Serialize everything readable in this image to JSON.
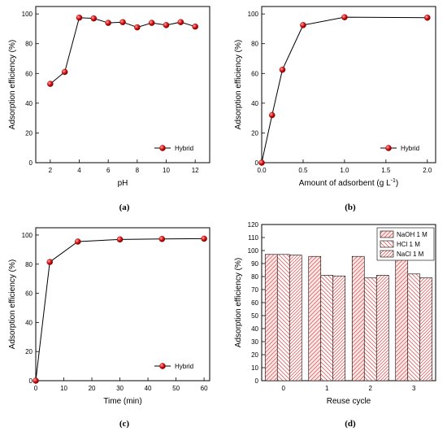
{
  "chart_data": [
    {
      "type": "line",
      "panel_label": "(a)",
      "xlabel": "pH",
      "ylabel": "Adsorption efficiency (%)",
      "xlim": [
        1,
        13
      ],
      "ylim": [
        0,
        105
      ],
      "xticks": [
        2,
        4,
        6,
        8,
        10,
        12
      ],
      "yticks": [
        0,
        20,
        40,
        60,
        80,
        100
      ],
      "legend_position": "bottom-right",
      "series": [
        {
          "name": "Hybrid",
          "x": [
            2,
            3,
            4,
            5,
            6,
            7,
            8,
            9,
            10,
            11,
            12
          ],
          "y": [
            53,
            61,
            97.5,
            97,
            94,
            94.5,
            91,
            94,
            92.5,
            94.5,
            91.5
          ]
        }
      ]
    },
    {
      "type": "line",
      "panel_label": "(b)",
      "xlabel": "Amount of adsorbent (g L",
      "xlabel_sup": "-1",
      "xlabel_end": ")",
      "ylabel": "Adsorption efficiency (%)",
      "xlim": [
        0,
        2.1
      ],
      "ylim": [
        0,
        105
      ],
      "xticks": [
        "0.0",
        "0.5",
        "1.0",
        "1.5",
        "2.0"
      ],
      "yticks": [
        0,
        20,
        40,
        60,
        80,
        100
      ],
      "legend_position": "bottom-right",
      "series": [
        {
          "name": "Hybrid",
          "x": [
            0,
            0.125,
            0.25,
            0.5,
            1.0,
            2.0
          ],
          "y": [
            0,
            32,
            62.5,
            92.5,
            97.8,
            97.5
          ]
        }
      ]
    },
    {
      "type": "line",
      "panel_label": "(c)",
      "xlabel": "Time (min)",
      "ylabel": "Adsorption efficiency (%)",
      "xlim": [
        0,
        62
      ],
      "ylim": [
        0,
        105
      ],
      "xticks": [
        0,
        10,
        20,
        30,
        40,
        50,
        60
      ],
      "yticks": [
        0,
        20,
        40,
        60,
        80,
        100
      ],
      "legend_position": "bottom-right",
      "series": [
        {
          "name": "Hybrid",
          "x": [
            0,
            5,
            15,
            30,
            45,
            60
          ],
          "y": [
            0,
            81.5,
            95.5,
            97,
            97.3,
            97.5
          ]
        }
      ]
    },
    {
      "type": "bar",
      "panel_label": "(d)",
      "xlabel": "Reuse cycle",
      "ylabel": "Adsorption efficiency (%)",
      "categories": [
        "0",
        "1",
        "2",
        "3"
      ],
      "ylim": [
        0,
        120
      ],
      "yticks": [
        0,
        10,
        20,
        30,
        40,
        50,
        60,
        70,
        80,
        90,
        100,
        110,
        120
      ],
      "legend_position": "top-right",
      "series": [
        {
          "name": "NaOH 1 M",
          "values": [
            97,
            95.5,
            95.5,
            95
          ]
        },
        {
          "name": "HCl 1 M",
          "values": [
            97,
            81,
            79,
            82
          ]
        },
        {
          "name": "NaCl 1 M",
          "values": [
            96.5,
            80.5,
            81,
            79
          ]
        }
      ]
    }
  ],
  "colors": {
    "marker": "#e01010",
    "line": "#000000",
    "hatch": "#e06060"
  }
}
